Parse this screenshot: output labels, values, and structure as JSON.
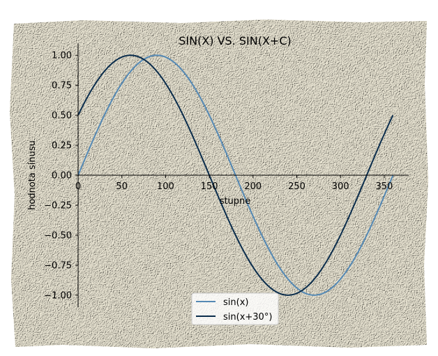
{
  "chart_data": {
    "type": "line",
    "title": "SIN(X) VS. SIN(X+C)",
    "xlabel": "stupne",
    "ylabel": "hodnota sínusu",
    "xlim": [
      0,
      378
    ],
    "ylim": [
      -1.1,
      1.1
    ],
    "x_ticks": [
      0,
      50,
      100,
      150,
      200,
      250,
      300,
      350
    ],
    "y_ticks": [
      1.0,
      0.75,
      0.5,
      0.25,
      0.0,
      -0.25,
      -0.5,
      -0.75,
      -1.0
    ],
    "y_tick_labels": [
      "1.00",
      "0.75",
      "0.50",
      "0.25",
      "0.00",
      "−0.25",
      "−0.50",
      "−0.75",
      "−1.00"
    ],
    "x_domain": [
      0,
      360
    ],
    "sample_step": 2,
    "series": [
      {
        "name": "sin(x)",
        "phase_deg": 0,
        "color": "#5589b4"
      },
      {
        "name": "sin(x+30°)",
        "phase_deg": 30,
        "color": "#0b2d4c"
      }
    ],
    "legend_position": "bottom-center",
    "grid": false,
    "background": "paper-texture",
    "colors": {
      "paper": "#ece7d4",
      "paper_dark": "#d9d3bd"
    }
  }
}
